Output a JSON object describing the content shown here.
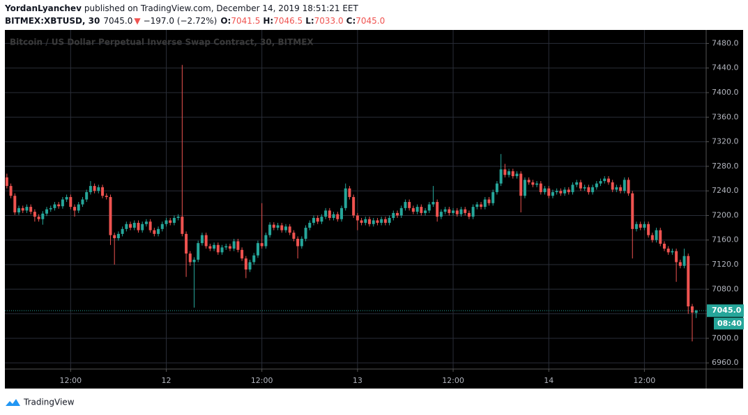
{
  "header": {
    "author": "YordanLyanchev",
    "published": "published on TradingView.com, December 14, 2019 18:51:21 EET",
    "symbol": "BITMEX:XBTUSD, 30",
    "last": "7045.0",
    "arrow": "▼",
    "change": "−197.0 (−2.72%)",
    "ohlc": [
      {
        "key": "O:",
        "value": "7041.5"
      },
      {
        "key": "H:",
        "value": "7046.5"
      },
      {
        "key": "L:",
        "value": "7033.0"
      },
      {
        "key": "C:",
        "value": "7045.0"
      }
    ]
  },
  "footer": {
    "brand": "TradingView"
  },
  "chart_data": {
    "type": "candlestick",
    "watermark": "Bitcoin / US Dollar Perpetual Inverse Swap Contract, 30, BITMEX",
    "up_color": "#26a69a",
    "down_color": "#ef5350",
    "grid": true,
    "xlim": [
      -0.5,
      175.5
    ],
    "xticks": [
      {
        "value": 16,
        "label": "12:00"
      },
      {
        "value": 40,
        "label": "12"
      },
      {
        "value": 64,
        "label": "12:00"
      },
      {
        "value": 88,
        "label": "13"
      },
      {
        "value": 112,
        "label": "12:00"
      },
      {
        "value": 136,
        "label": "14"
      },
      {
        "value": 160,
        "label": "12:00"
      }
    ],
    "ylim": [
      6950,
      7502
    ],
    "yticks": [
      {
        "value": 6960,
        "label": "6960.0"
      },
      {
        "value": 7000,
        "label": "7000.0"
      },
      {
        "value": 7040,
        "label": "7040.0"
      },
      {
        "value": 7080,
        "label": "7080.0"
      },
      {
        "value": 7120,
        "label": "7120.0"
      },
      {
        "value": 7160,
        "label": "7160.0"
      },
      {
        "value": 7200,
        "label": "7200.0"
      },
      {
        "value": 7240,
        "label": "7240.0"
      },
      {
        "value": 7280,
        "label": "7280.0"
      },
      {
        "value": 7320,
        "label": "7320.0"
      },
      {
        "value": 7360,
        "label": "7360.0"
      },
      {
        "value": 7400,
        "label": "7400.0"
      },
      {
        "value": 7440,
        "label": "7440.0"
      },
      {
        "value": 7480,
        "label": "7480.0"
      }
    ],
    "price_label": {
      "value": 7045,
      "label": "7045.0"
    },
    "countdown": "08:40",
    "open": [
      7262,
      7248,
      7232,
      7205,
      7212,
      7208,
      7214,
      7206,
      7198,
      7194,
      7203,
      7210,
      7212,
      7218,
      7215,
      7226,
      7230,
      7214,
      7208,
      7218,
      7226,
      7238,
      7248,
      7240,
      7246,
      7232,
      7230,
      7168,
      7163,
      7170,
      7178,
      7186,
      7180,
      7188,
      7176,
      7186,
      7190,
      7176,
      7170,
      7178,
      7186,
      7192,
      7188,
      7196,
      7198,
      7170,
      7138,
      7124,
      7128,
      7155,
      7168,
      7150,
      7146,
      7152,
      7140,
      7148,
      7150,
      7146,
      7158,
      7144,
      7130,
      7112,
      7124,
      7135,
      7155,
      7150,
      7168,
      7185,
      7180,
      7184,
      7176,
      7182,
      7172,
      7162,
      7150,
      7162,
      7180,
      7188,
      7196,
      7190,
      7198,
      7208,
      7196,
      7202,
      7194,
      7212,
      7244,
      7230,
      7200,
      7192,
      7188,
      7194,
      7186,
      7192,
      7188,
      7194,
      7188,
      7196,
      7204,
      7200,
      7212,
      7222,
      7212,
      7206,
      7214,
      7204,
      7208,
      7218,
      7222,
      7198,
      7206,
      7210,
      7204,
      7208,
      7202,
      7210,
      7204,
      7198,
      7214,
      7218,
      7214,
      7226,
      7220,
      7238,
      7252,
      7275,
      7266,
      7272,
      7264,
      7268,
      7232,
      7258,
      7254,
      7250,
      7252,
      7238,
      7244,
      7232,
      7238,
      7240,
      7236,
      7242,
      7238,
      7250,
      7254,
      7244,
      7246,
      7238,
      7246,
      7252,
      7256,
      7260,
      7254,
      7242,
      7246,
      7240,
      7258,
      7236,
      7178,
      7186,
      7180,
      7186,
      7168,
      7160,
      7176,
      7154,
      7146,
      7140,
      7142,
      7124,
      7118,
      7134,
      7052,
      7041.5
    ],
    "high": [
      7268,
      7252,
      7236,
      7216,
      7216,
      7218,
      7218,
      7210,
      7202,
      7207,
      7214,
      7216,
      7222,
      7222,
      7230,
      7234,
      7234,
      7218,
      7222,
      7230,
      7242,
      7256,
      7252,
      7250,
      7250,
      7236,
      7234,
      7172,
      7174,
      7182,
      7190,
      7190,
      7192,
      7192,
      7190,
      7194,
      7194,
      7180,
      7182,
      7190,
      7196,
      7196,
      7200,
      7202,
      7445,
      7174,
      7142,
      7132,
      7159,
      7172,
      7172,
      7154,
      7156,
      7156,
      7152,
      7154,
      7154,
      7162,
      7162,
      7148,
      7134,
      7128,
      7139,
      7159,
      7220,
      7172,
      7189,
      7189,
      7188,
      7188,
      7186,
      7186,
      7176,
      7166,
      7166,
      7184,
      7192,
      7200,
      7200,
      7202,
      7212,
      7212,
      7206,
      7206,
      7216,
      7252,
      7248,
      7234,
      7204,
      7196,
      7198,
      7198,
      7196,
      7196,
      7198,
      7198,
      7200,
      7208,
      7208,
      7216,
      7226,
      7226,
      7216,
      7218,
      7218,
      7212,
      7222,
      7248,
      7226,
      7210,
      7214,
      7214,
      7212,
      7212,
      7214,
      7214,
      7208,
      7218,
      7222,
      7222,
      7230,
      7230,
      7242,
      7256,
      7300,
      7284,
      7276,
      7276,
      7272,
      7272,
      7262,
      7262,
      7258,
      7256,
      7256,
      7248,
      7248,
      7242,
      7244,
      7244,
      7246,
      7246,
      7254,
      7258,
      7258,
      7250,
      7250,
      7250,
      7256,
      7260,
      7264,
      7264,
      7258,
      7250,
      7250,
      7262,
      7262,
      7240,
      7190,
      7190,
      7190,
      7190,
      7172,
      7180,
      7180,
      7158,
      7150,
      7146,
      7146,
      7128,
      7146,
      7138,
      7056,
      7046.5
    ],
    "low": [
      7244,
      7228,
      7201,
      7201,
      7204,
      7204,
      7202,
      7190,
      7190,
      7185,
      7199,
      7206,
      7208,
      7211,
      7211,
      7222,
      7210,
      7198,
      7204,
      7214,
      7222,
      7234,
      7236,
      7236,
      7228,
      7226,
      7152,
      7120,
      7159,
      7166,
      7174,
      7176,
      7176,
      7172,
      7172,
      7182,
      7172,
      7166,
      7166,
      7174,
      7182,
      7184,
      7184,
      7192,
      7166,
      7100,
      7118,
      7050,
      7124,
      7151,
      7146,
      7142,
      7142,
      7136,
      7136,
      7144,
      7142,
      7142,
      7140,
      7126,
      7098,
      7108,
      7120,
      7131,
      7146,
      7146,
      7164,
      7176,
      7176,
      7172,
      7172,
      7168,
      7158,
      7130,
      7146,
      7158,
      7176,
      7184,
      7186,
      7186,
      7194,
      7192,
      7192,
      7190,
      7190,
      7208,
      7226,
      7196,
      7176,
      7184,
      7184,
      7182,
      7182,
      7184,
      7184,
      7184,
      7184,
      7192,
      7196,
      7196,
      7208,
      7208,
      7202,
      7202,
      7200,
      7200,
      7204,
      7214,
      7190,
      7194,
      7202,
      7200,
      7200,
      7198,
      7198,
      7200,
      7194,
      7194,
      7210,
      7210,
      7210,
      7216,
      7216,
      7234,
      7248,
      7262,
      7262,
      7260,
      7260,
      7205,
      7228,
      7250,
      7246,
      7246,
      7234,
      7234,
      7228,
      7228,
      7234,
      7232,
      7232,
      7234,
      7234,
      7246,
      7240,
      7240,
      7234,
      7234,
      7242,
      7248,
      7252,
      7250,
      7238,
      7238,
      7236,
      7236,
      7232,
      7130,
      7174,
      7176,
      7176,
      7164,
      7156,
      7156,
      7150,
      7142,
      7136,
      7136,
      7092,
      7114,
      7114,
      7040,
      6995,
      7033
    ],
    "close": [
      7248,
      7232,
      7205,
      7212,
      7208,
      7214,
      7206,
      7198,
      7194,
      7203,
      7210,
      7212,
      7218,
      7215,
      7226,
      7230,
      7214,
      7208,
      7218,
      7226,
      7238,
      7248,
      7240,
      7246,
      7232,
      7230,
      7168,
      7163,
      7170,
      7178,
      7186,
      7180,
      7188,
      7176,
      7186,
      7190,
      7176,
      7170,
      7178,
      7186,
      7192,
      7188,
      7196,
      7198,
      7170,
      7138,
      7124,
      7128,
      7155,
      7168,
      7150,
      7146,
      7152,
      7140,
      7148,
      7150,
      7146,
      7158,
      7144,
      7130,
      7112,
      7124,
      7135,
      7155,
      7150,
      7168,
      7185,
      7180,
      7184,
      7176,
      7182,
      7172,
      7162,
      7150,
      7162,
      7180,
      7188,
      7196,
      7190,
      7198,
      7208,
      7196,
      7202,
      7194,
      7212,
      7244,
      7230,
      7200,
      7192,
      7188,
      7194,
      7186,
      7192,
      7188,
      7194,
      7188,
      7196,
      7204,
      7200,
      7212,
      7222,
      7212,
      7206,
      7214,
      7204,
      7208,
      7218,
      7222,
      7198,
      7206,
      7210,
      7204,
      7208,
      7202,
      7210,
      7204,
      7198,
      7214,
      7218,
      7214,
      7226,
      7220,
      7238,
      7252,
      7275,
      7266,
      7272,
      7264,
      7268,
      7232,
      7258,
      7254,
      7250,
      7252,
      7238,
      7244,
      7232,
      7238,
      7240,
      7236,
      7242,
      7238,
      7250,
      7254,
      7244,
      7246,
      7238,
      7246,
      7252,
      7256,
      7260,
      7254,
      7242,
      7246,
      7240,
      7258,
      7236,
      7178,
      7186,
      7180,
      7186,
      7168,
      7160,
      7176,
      7154,
      7146,
      7140,
      7142,
      7124,
      7118,
      7134,
      7052,
      7042,
      7045
    ]
  }
}
